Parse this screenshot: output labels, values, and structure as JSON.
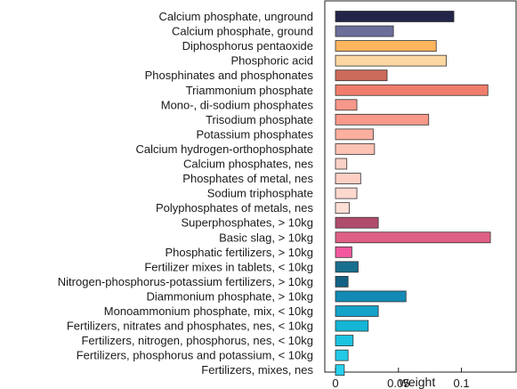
{
  "chart_data": {
    "type": "bar",
    "orientation": "horizontal",
    "xlabel": "weight",
    "xlim": [
      0,
      0.142
    ],
    "xticks": [
      0,
      0.05,
      0.1
    ],
    "xtick_labels": [
      "0",
      "0.05",
      "0.1"
    ],
    "grid": false,
    "legend": "none",
    "categories": [
      "Calcium phosphate, unground",
      "Calcium phosphate, ground",
      "Diphosphorus pentaoxide",
      "Phosphoric acid",
      "Phosphinates and phosphonates",
      "Triammonium phosphate",
      "Mono-, di-sodium phosphates",
      "Trisodium phosphate",
      "Potassium phosphates",
      "Calcium hydrogen-orthophosphate",
      "Calcium phosphates, nes",
      "Phosphates of metal, nes",
      "Sodium triphosphate",
      "Polyphosphates of metals, nes",
      "Superphosphates, > 10kg",
      "Basic slag, > 10kg",
      "Phosphatic fertilizers, > 10kg",
      "Fertilizer mixes in tablets,  < 10kg",
      "Nitrogen-phosphorus-potassium fertilizers, > 10kg",
      "Diammonium phosphate, > 10kg",
      "Monoammonium phosphate, mix, < 10kg",
      "Fertilizers, nitrates and phosphates, nes,  < 10kg",
      "Fertilizers, nitrogen, phosphorus, nes, < 10kg",
      "Fertilizers, phosphorus and potassium,  < 10kg",
      "Fertilizers, mixes, nes"
    ],
    "values": [
      0.094,
      0.046,
      0.08,
      0.088,
      0.041,
      0.121,
      0.017,
      0.074,
      0.03,
      0.031,
      0.009,
      0.02,
      0.017,
      0.011,
      0.034,
      0.123,
      0.013,
      0.018,
      0.01,
      0.056,
      0.034,
      0.026,
      0.014,
      0.01,
      0.007
    ],
    "colors": [
      "#222548",
      "#6b6e9a",
      "#fdb55e",
      "#fdd7a2",
      "#cc6a5b",
      "#f07d6c",
      "#f6988a",
      "#f9998a",
      "#fbaf9f",
      "#fcc2b4",
      "#fdd2c6",
      "#fdcfc3",
      "#fdd8cd",
      "#feded5",
      "#b04c6c",
      "#e05f85",
      "#f2589d",
      "#176f8e",
      "#136284",
      "#138ab5",
      "#15a2c9",
      "#14b5d6",
      "#1cc3e1",
      "#22cae7",
      "#26d1ee"
    ]
  }
}
